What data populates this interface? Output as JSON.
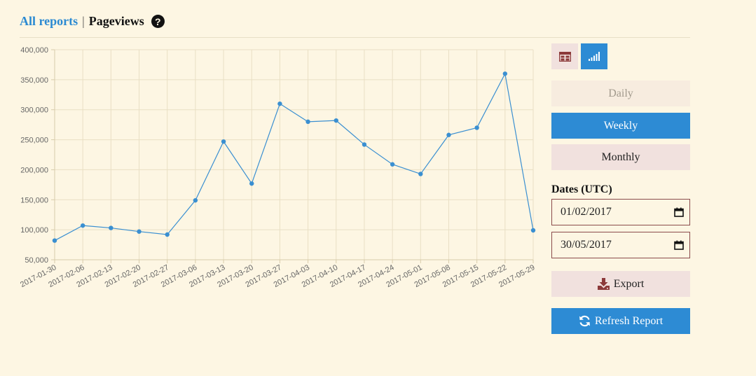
{
  "header": {
    "all_reports": "All reports",
    "separator": "|",
    "current": "Pageviews",
    "help_glyph": "?"
  },
  "view_toggle": {
    "table_icon": "table-icon",
    "chart_icon": "bar-chart-icon"
  },
  "periods": {
    "daily": "Daily",
    "weekly": "Weekly",
    "monthly": "Monthly",
    "active": "weekly"
  },
  "dates": {
    "label": "Dates (UTC)",
    "start": "01/02/2017",
    "end": "30/05/2017"
  },
  "actions": {
    "export": "Export",
    "refresh": "Refresh Report"
  },
  "colors": {
    "accent": "#2d8bd4",
    "line": "#3a8fd1",
    "secondary_bg": "#f1e1de",
    "background": "#fdf6e3"
  },
  "chart_data": {
    "type": "line",
    "x": [
      "2017-01-30",
      "2017-02-06",
      "2017-02-13",
      "2017-02-20",
      "2017-02-27",
      "2017-03-06",
      "2017-03-13",
      "2017-03-20",
      "2017-03-27",
      "2017-04-03",
      "2017-04-10",
      "2017-04-17",
      "2017-04-24",
      "2017-05-01",
      "2017-05-08",
      "2017-05-15",
      "2017-05-22",
      "2017-05-29"
    ],
    "series": [
      {
        "values": [
          82000,
          107000,
          103000,
          97000,
          92000,
          149000,
          247000,
          177000,
          310000,
          280000,
          282000,
          242000,
          209000,
          193000,
          258000,
          270000,
          360000,
          99000
        ]
      }
    ],
    "ylim": [
      50000,
      400000
    ],
    "yticks": [
      "50,000",
      "100,000",
      "150,000",
      "200,000",
      "250,000",
      "300,000",
      "350,000",
      "400,000"
    ],
    "grid": true,
    "title": "",
    "xlabel": "",
    "ylabel": ""
  }
}
